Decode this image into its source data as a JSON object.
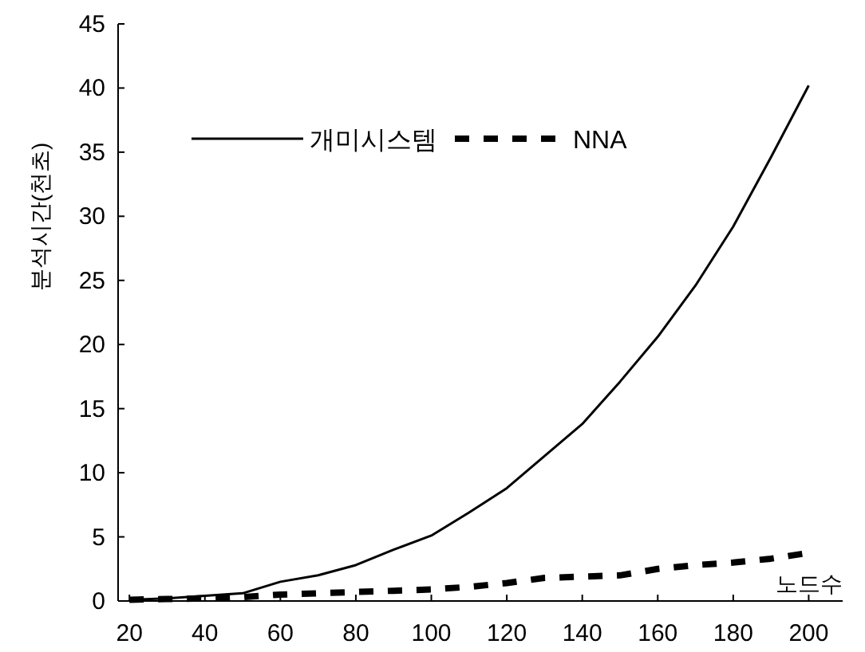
{
  "chart_data": {
    "type": "line",
    "xlabel": "노드수",
    "ylabel": "분석시간(천초)",
    "x": [
      20,
      30,
      40,
      50,
      60,
      70,
      80,
      90,
      100,
      110,
      120,
      130,
      140,
      150,
      160,
      170,
      180,
      190,
      200
    ],
    "series": [
      {
        "name": "개미시스템",
        "color": "#000000",
        "line_style": "solid",
        "values": [
          0.1,
          0.2,
          0.4,
          0.6,
          1.5,
          2.0,
          2.8,
          4.0,
          5.1,
          6.9,
          8.8,
          11.3,
          13.8,
          17.1,
          20.6,
          24.6,
          29.2,
          34.6,
          40.2
        ]
      },
      {
        "name": "NNA",
        "color": "#000000",
        "line_style": "dashed",
        "values": [
          0.1,
          0.15,
          0.2,
          0.3,
          0.5,
          0.6,
          0.7,
          0.8,
          0.9,
          1.1,
          1.4,
          1.8,
          1.9,
          2.0,
          2.5,
          2.8,
          3.0,
          3.3,
          3.75
        ]
      }
    ],
    "xlim": [
      17,
      209
    ],
    "ylim": [
      0,
      45
    ],
    "xticks": [
      20,
      40,
      60,
      80,
      100,
      120,
      140,
      160,
      180,
      200
    ],
    "yticks": [
      0,
      5,
      10,
      15,
      20,
      25,
      30,
      35,
      40,
      45
    ],
    "grid": false,
    "legend": "top",
    "marker": "none"
  }
}
